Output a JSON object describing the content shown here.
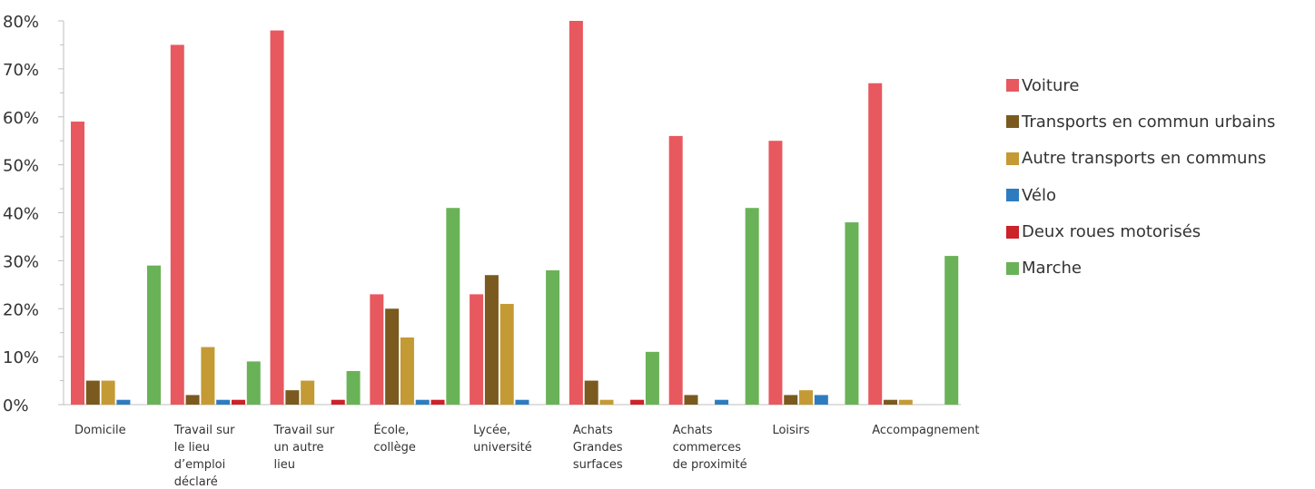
{
  "chart_data": {
    "type": "bar",
    "categories": [
      [
        "Domicile"
      ],
      [
        "Travail sur",
        "le lieu",
        "d’emploi",
        "déclaré"
      ],
      [
        "Travail sur",
        "un autre",
        "lieu"
      ],
      [
        "École,",
        "collège"
      ],
      [
        "Lycée,",
        "université"
      ],
      [
        "Achats",
        "Grandes",
        "surfaces"
      ],
      [
        "Achats",
        "commerces",
        "de proximité"
      ],
      [
        "Loisirs"
      ],
      [
        "Accompagnement"
      ]
    ],
    "series": [
      {
        "name": "Voiture",
        "color": "#e8585f",
        "values": [
          59,
          75,
          78,
          23,
          23,
          80,
          56,
          55,
          67
        ]
      },
      {
        "name": "Transports en commun urbains",
        "color": "#7a5a1e",
        "values": [
          5,
          2,
          3,
          20,
          27,
          5,
          2,
          2,
          1
        ]
      },
      {
        "name": "Autre transports en communs",
        "color": "#c49a35",
        "values": [
          5,
          12,
          5,
          14,
          21,
          1,
          0,
          3,
          1
        ]
      },
      {
        "name": "Vélo",
        "color": "#2e7cc0",
        "values": [
          1,
          1,
          0,
          1,
          1,
          0,
          1,
          2,
          0
        ]
      },
      {
        "name": "Deux roues motorisés",
        "color": "#cc2229",
        "values": [
          0,
          1,
          1,
          1,
          0,
          1,
          0,
          0,
          0
        ]
      },
      {
        "name": "Marche",
        "color": "#6ab257",
        "values": [
          29,
          9,
          7,
          41,
          28,
          11,
          41,
          38,
          31
        ]
      }
    ],
    "y_ticks": [
      "0%",
      "10%",
      "20%",
      "30%",
      "40%",
      "50%",
      "60%",
      "70%",
      "80%"
    ],
    "ylim": [
      0,
      80
    ],
    "unit": "%",
    "legend_position": "right",
    "grid": false
  }
}
